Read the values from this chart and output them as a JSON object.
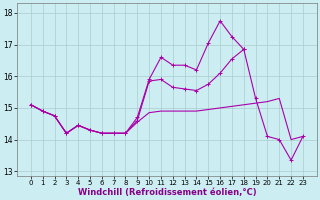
{
  "xlabel": "Windchill (Refroidissement éolien,°C)",
  "bg_color": "#cceef2",
  "grid_color": "#aacccc",
  "line_color": "#aa00aa",
  "x_values": [
    0,
    1,
    2,
    3,
    4,
    5,
    6,
    7,
    8,
    9,
    10,
    11,
    12,
    13,
    14,
    15,
    16,
    17,
    18,
    19,
    20,
    21,
    22,
    23
  ],
  "line1_y": [
    15.1,
    14.9,
    14.75,
    14.2,
    14.45,
    14.3,
    14.2,
    14.2,
    14.2,
    14.55,
    14.85,
    14.9,
    14.9,
    14.9,
    14.9,
    14.95,
    15.0,
    15.05,
    15.1,
    15.15,
    15.2,
    15.3,
    14.0,
    14.1
  ],
  "line2_y": [
    15.1,
    14.9,
    14.75,
    14.2,
    14.45,
    14.3,
    14.2,
    14.2,
    14.2,
    14.7,
    15.9,
    16.6,
    16.35,
    16.35,
    16.2,
    17.05,
    17.75,
    17.25,
    16.85,
    null,
    null,
    null,
    null,
    null
  ],
  "line3_y": [
    15.1,
    14.9,
    14.75,
    14.2,
    14.45,
    14.3,
    14.2,
    14.2,
    14.2,
    14.6,
    15.85,
    15.9,
    15.65,
    15.6,
    15.55,
    15.75,
    16.1,
    16.55,
    16.85,
    15.3,
    14.1,
    14.0,
    13.35,
    14.1
  ],
  "ylim": [
    12.85,
    18.3
  ],
  "yticks": [
    13,
    14,
    15,
    16,
    17,
    18
  ],
  "xticks": [
    0,
    1,
    2,
    3,
    4,
    5,
    6,
    7,
    8,
    9,
    10,
    11,
    12,
    13,
    14,
    15,
    16,
    17,
    18,
    19,
    20,
    21,
    22,
    23
  ]
}
